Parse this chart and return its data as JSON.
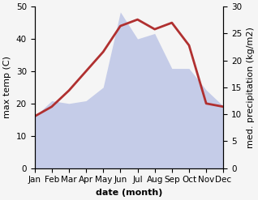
{
  "months": [
    "Jan",
    "Feb",
    "Mar",
    "Apr",
    "May",
    "Jun",
    "Jul",
    "Aug",
    "Sep",
    "Oct",
    "Nov",
    "Dec"
  ],
  "temperature": [
    16,
    19,
    24,
    30,
    36,
    44,
    46,
    43,
    45,
    38,
    20,
    19
  ],
  "precipitation_mm": [
    9.5,
    12.5,
    12,
    12.5,
    15,
    29,
    24,
    25,
    18.5,
    18.5,
    14.5,
    11.5
  ],
  "temp_color": "#b03030",
  "precip_fill_color": "#c5cce8",
  "temp_ylim": [
    0,
    50
  ],
  "precip_ylim": [
    0,
    30
  ],
  "temp_yticks": [
    0,
    10,
    20,
    30,
    40,
    50
  ],
  "precip_yticks": [
    0,
    5,
    10,
    15,
    20,
    25,
    30
  ],
  "xlabel": "date (month)",
  "ylabel_left": "max temp (C)",
  "ylabel_right": "med. precipitation (kg/m2)",
  "label_fontsize": 8,
  "tick_fontsize": 7.5
}
